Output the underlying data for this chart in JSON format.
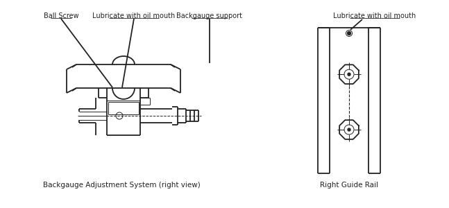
{
  "bg_color": "#ffffff",
  "line_color": "#222222",
  "text_color": "#222222",
  "font_size_label": 7.0,
  "font_size_caption": 7.5,
  "left_caption": "Backgauge Adjustment System (right view)",
  "right_caption": "Right Guide Rail",
  "label_ball_screw": "Ball Screw",
  "label_oil_mouth_left": "Lubricate with oil mouth",
  "label_backgauge": "Backgauge support",
  "label_oil_mouth_right": "Lubricate with oil mouth",
  "lw_main": 1.3,
  "lw_thin": 0.7
}
